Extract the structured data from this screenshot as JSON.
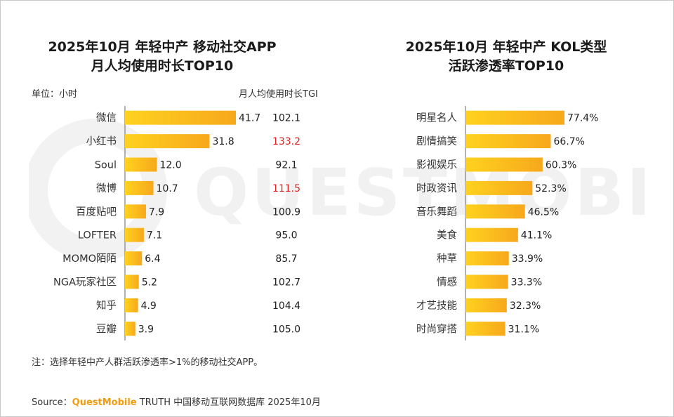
{
  "colors": {
    "bar_start": "#ffd21f",
    "bar_end": "#f7a81c",
    "highlight": "#e02020",
    "axis": "#666666"
  },
  "watermark": "QUESTMOBILE",
  "chart_data": [
    {
      "type": "bar",
      "title_line1": "2025年10月 年轻中产 移动社交APP",
      "title_line2": "月人均使用时长TOP10",
      "unit_label": "单位：小时",
      "tgi_header": "月人均使用时长TGI",
      "categories": [
        "微信",
        "小红书",
        "Soul",
        "微博",
        "百度贴吧",
        "LOFTER",
        "MOMO陌陌",
        "NGA玩家社区",
        "知乎",
        "豆瓣"
      ],
      "values": [
        41.7,
        31.8,
        12.0,
        10.7,
        7.9,
        7.1,
        6.4,
        5.2,
        4.9,
        3.9
      ],
      "value_labels": [
        "41.7",
        "31.8",
        "12.0",
        "10.7",
        "7.9",
        "7.1",
        "6.4",
        "5.2",
        "4.9",
        "3.9"
      ],
      "tgi": [
        "102.1",
        "133.2",
        "92.1",
        "111.5",
        "100.9",
        "95.0",
        "85.7",
        "102.7",
        "104.4",
        "105.0"
      ],
      "tgi_highlight": [
        false,
        true,
        false,
        true,
        false,
        false,
        false,
        false,
        false,
        false
      ],
      "xlim": [
        0,
        41.7
      ]
    },
    {
      "type": "bar",
      "title_line1": "2025年10月 年轻中产 KOL类型",
      "title_line2": "活跃渗透率TOP10",
      "categories": [
        "明星名人",
        "剧情搞笑",
        "影视娱乐",
        "时政资讯",
        "音乐舞蹈",
        "美食",
        "种草",
        "情感",
        "才艺技能",
        "时尚穿搭"
      ],
      "values": [
        77.4,
        66.7,
        60.3,
        52.3,
        46.5,
        41.1,
        33.9,
        33.3,
        32.3,
        31.1
      ],
      "value_labels": [
        "77.4%",
        "66.7%",
        "60.3%",
        "52.3%",
        "46.5%",
        "41.1%",
        "33.9%",
        "33.3%",
        "32.3%",
        "31.1%"
      ],
      "xlim": [
        0,
        77.4
      ]
    }
  ],
  "footnote": "注：选择年轻中产人群活跃渗透率>1%的移动社交APP。",
  "source": {
    "prefix": "Source：",
    "brand": "QuestMobile",
    "text": " TRUTH 中国移动互联网数据库 2025年10月"
  }
}
